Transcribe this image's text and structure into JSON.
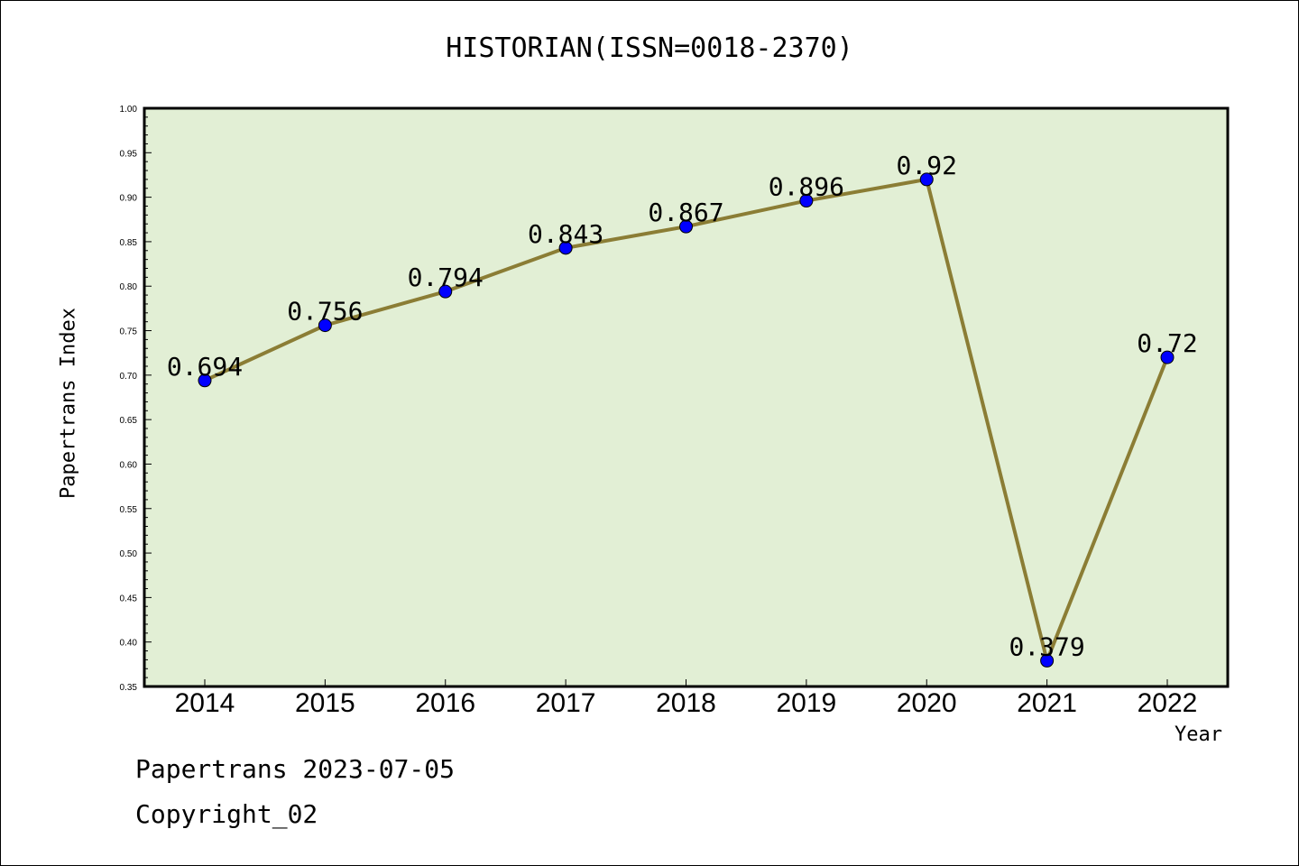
{
  "chart_data": {
    "type": "line",
    "title": "HISTORIAN(ISSN=0018-2370)",
    "xlabel": "Year",
    "ylabel": "Papertrans Index",
    "categories": [
      "2014",
      "2015",
      "2016",
      "2017",
      "2018",
      "2019",
      "2020",
      "2021",
      "2022"
    ],
    "series": [
      {
        "values": [
          0.694,
          0.756,
          0.794,
          0.843,
          0.867,
          0.896,
          0.92,
          0.379,
          0.72
        ],
        "labels": [
          "0.694",
          "0.756",
          "0.794",
          "0.843",
          "0.867",
          "0.896",
          "0.92",
          "0.379",
          "0.72"
        ]
      }
    ],
    "ylim": [
      0.35,
      1.0
    ],
    "yticks": [
      "0.35",
      "0.40",
      "0.45",
      "0.50",
      "0.55",
      "0.60",
      "0.65",
      "0.70",
      "0.75",
      "0.80",
      "0.85",
      "0.90",
      "0.95",
      "1.00"
    ],
    "grid": false,
    "colors": {
      "plot_background": "#e2efd5",
      "line": "#8b7d35",
      "marker": "#0000ff"
    }
  },
  "footer": {
    "line1": "Papertrans 2023-07-05",
    "line2": "Copyright_02"
  }
}
